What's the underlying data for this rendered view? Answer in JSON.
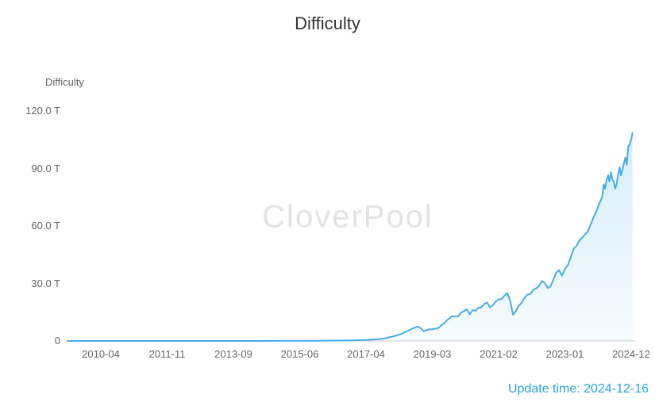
{
  "title": "Difficulty",
  "watermark": "CloverPool",
  "update_time": "Update time: 2024-12-16",
  "chart_data": {
    "type": "area",
    "title": "Difficulty",
    "y_axis_name": "Difficulty",
    "unit": "T",
    "ylim": [
      0,
      120
    ],
    "grid": false,
    "legend_position": "none",
    "y_ticks": [
      {
        "value": 0,
        "label": "0"
      },
      {
        "value": 30,
        "label": "30.0 T"
      },
      {
        "value": 60,
        "label": "60.0 T"
      },
      {
        "value": 90,
        "label": "90.0 T"
      },
      {
        "value": 120,
        "label": "120.0 T"
      }
    ],
    "x_tick_labels": [
      "2010-04",
      "2011-11",
      "2013-09",
      "2015-06",
      "2017-04",
      "2019-03",
      "2021-02",
      "2023-01",
      "2024-12"
    ],
    "series": [
      {
        "name": "Difficulty",
        "points": [
          [
            "2009-01",
            0
          ],
          [
            "2009-07",
            0
          ],
          [
            "2010-01",
            0
          ],
          [
            "2010-04",
            0
          ],
          [
            "2010-12",
            0
          ],
          [
            "2011-06",
            1e-06
          ],
          [
            "2011-11",
            1e-06
          ],
          [
            "2012-06",
            1.5e-06
          ],
          [
            "2012-12",
            3e-06
          ],
          [
            "2013-04",
            9e-06
          ],
          [
            "2013-09",
            8.7e-05
          ],
          [
            "2014-01",
            0.0013
          ],
          [
            "2014-06",
            0.0117
          ],
          [
            "2014-12",
            0.04
          ],
          [
            "2015-06",
            0.0476
          ],
          [
            "2015-12",
            0.0722
          ],
          [
            "2016-06",
            0.2097
          ],
          [
            "2016-12",
            0.3108
          ],
          [
            "2017-04",
            0.4993
          ],
          [
            "2017-06",
            0.6789
          ],
          [
            "2017-08",
            0.9234
          ],
          [
            "2017-10",
            1.1898
          ],
          [
            "2017-12",
            1.873
          ],
          [
            "2018-02",
            2.6038
          ],
          [
            "2018-04",
            3.5117
          ],
          [
            "2018-06",
            4.9431
          ],
          [
            "2018-08",
            6.389
          ],
          [
            "2018-09",
            7.019
          ],
          [
            "2018-10",
            7.4547
          ],
          [
            "2018-11",
            6.653
          ],
          [
            "2018-12",
            5.1063
          ],
          [
            "2019-01",
            5.6184
          ],
          [
            "2019-02",
            6.0614
          ],
          [
            "2019-03",
            6.0686
          ],
          [
            "2019-04",
            6.3792
          ],
          [
            "2019-05",
            6.7029
          ],
          [
            "2019-06",
            7.9347
          ],
          [
            "2019-07",
            9.0643
          ],
          [
            "2019-08",
            10.7718
          ],
          [
            "2019-09",
            11.8902
          ],
          [
            "2019-10",
            13.0083
          ],
          [
            "2019-11",
            12.7204
          ],
          [
            "2019-12",
            12.9489
          ],
          [
            "2020-01",
            14.7787
          ],
          [
            "2020-02",
            15.5463
          ],
          [
            "2020-03",
            16.5524
          ],
          [
            "2020-04",
            13.9124
          ],
          [
            "2020-05",
            16.1046
          ],
          [
            "2020-06",
            15.7848
          ],
          [
            "2020-07",
            17.3453
          ],
          [
            "2020-08",
            17.5617
          ],
          [
            "2020-09",
            19.3146
          ],
          [
            "2020-10",
            19.9973
          ],
          [
            "2020-11",
            17.5967
          ],
          [
            "2020-12",
            18.5991
          ],
          [
            "2021-01",
            20.6074
          ],
          [
            "2021-02",
            21.7245
          ],
          [
            "2021-03",
            21.8672
          ],
          [
            "2021-04",
            23.5817
          ],
          [
            "2021-05",
            25.0462
          ],
          [
            "2021-06",
            21.0474
          ],
          [
            "2021-07",
            13.6727
          ],
          [
            "2021-08",
            15.5561
          ],
          [
            "2021-09",
            18.4154
          ],
          [
            "2021-10",
            19.8935
          ],
          [
            "2021-11",
            22.3399
          ],
          [
            "2021-12",
            24.1955
          ],
          [
            "2022-01",
            24.3714
          ],
          [
            "2022-02",
            26.6903
          ],
          [
            "2022-03",
            27.4528
          ],
          [
            "2022-04",
            28.5874
          ],
          [
            "2022-05",
            31.2511
          ],
          [
            "2022-06",
            30.2833
          ],
          [
            "2022-07",
            27.6926
          ],
          [
            "2022-08",
            28.3513
          ],
          [
            "2022-09",
            32.0454
          ],
          [
            "2022-10",
            35.6111
          ],
          [
            "2022-11",
            36.9502
          ],
          [
            "2022-12",
            34.0931
          ],
          [
            "2023-01",
            37.5902
          ],
          [
            "2023-02",
            39.3501
          ],
          [
            "2023-03",
            43.5534
          ],
          [
            "2023-04",
            48.0054
          ],
          [
            "2023-05",
            49.5492
          ],
          [
            "2023-06",
            52.3505
          ],
          [
            "2023-07",
            53.9111
          ],
          [
            "2023-08",
            55.6221
          ],
          [
            "2023-09",
            57.1193
          ],
          [
            "2023-10",
            61.0304
          ],
          [
            "2023-11",
            64.6784
          ],
          [
            "2023-12",
            67.9574
          ],
          [
            "2024-01-01",
            72.0067
          ],
          [
            "2024-01-15",
            73.2251
          ],
          [
            "2024-02-01",
            75.5021
          ],
          [
            "2024-02-15",
            81.7259
          ],
          [
            "2024-03-01",
            79.3531
          ],
          [
            "2024-03-15",
            83.9492
          ],
          [
            "2024-04-01",
            86.3884
          ],
          [
            "2024-04-15",
            83.1266
          ],
          [
            "2024-05-01",
            88.1043
          ],
          [
            "2024-05-15",
            84.3812
          ],
          [
            "2024-06-01",
            83.1481
          ],
          [
            "2024-06-15",
            79.5032
          ],
          [
            "2024-07-01",
            82.0474
          ],
          [
            "2024-07-15",
            86.8714
          ],
          [
            "2024-08-01",
            90.6662
          ],
          [
            "2024-08-15",
            86.4134
          ],
          [
            "2024-09-01",
            89.4712
          ],
          [
            "2024-09-15",
            92.6732
          ],
          [
            "2024-10-01",
            95.6727
          ],
          [
            "2024-10-15",
            92.0497
          ],
          [
            "2024-11-01",
            101.6463
          ],
          [
            "2024-11-15",
            102.2897
          ],
          [
            "2024-12-01",
            105.1498
          ],
          [
            "2024-12-15",
            108.5224
          ]
        ]
      }
    ],
    "colors": {
      "line": "#45aee9",
      "axis_line": "#cccccc",
      "tick_text": "#666666",
      "title_text": "#333333",
      "watermark_text": "#e3e3e3",
      "update_time_text": "#28a5e0"
    }
  }
}
